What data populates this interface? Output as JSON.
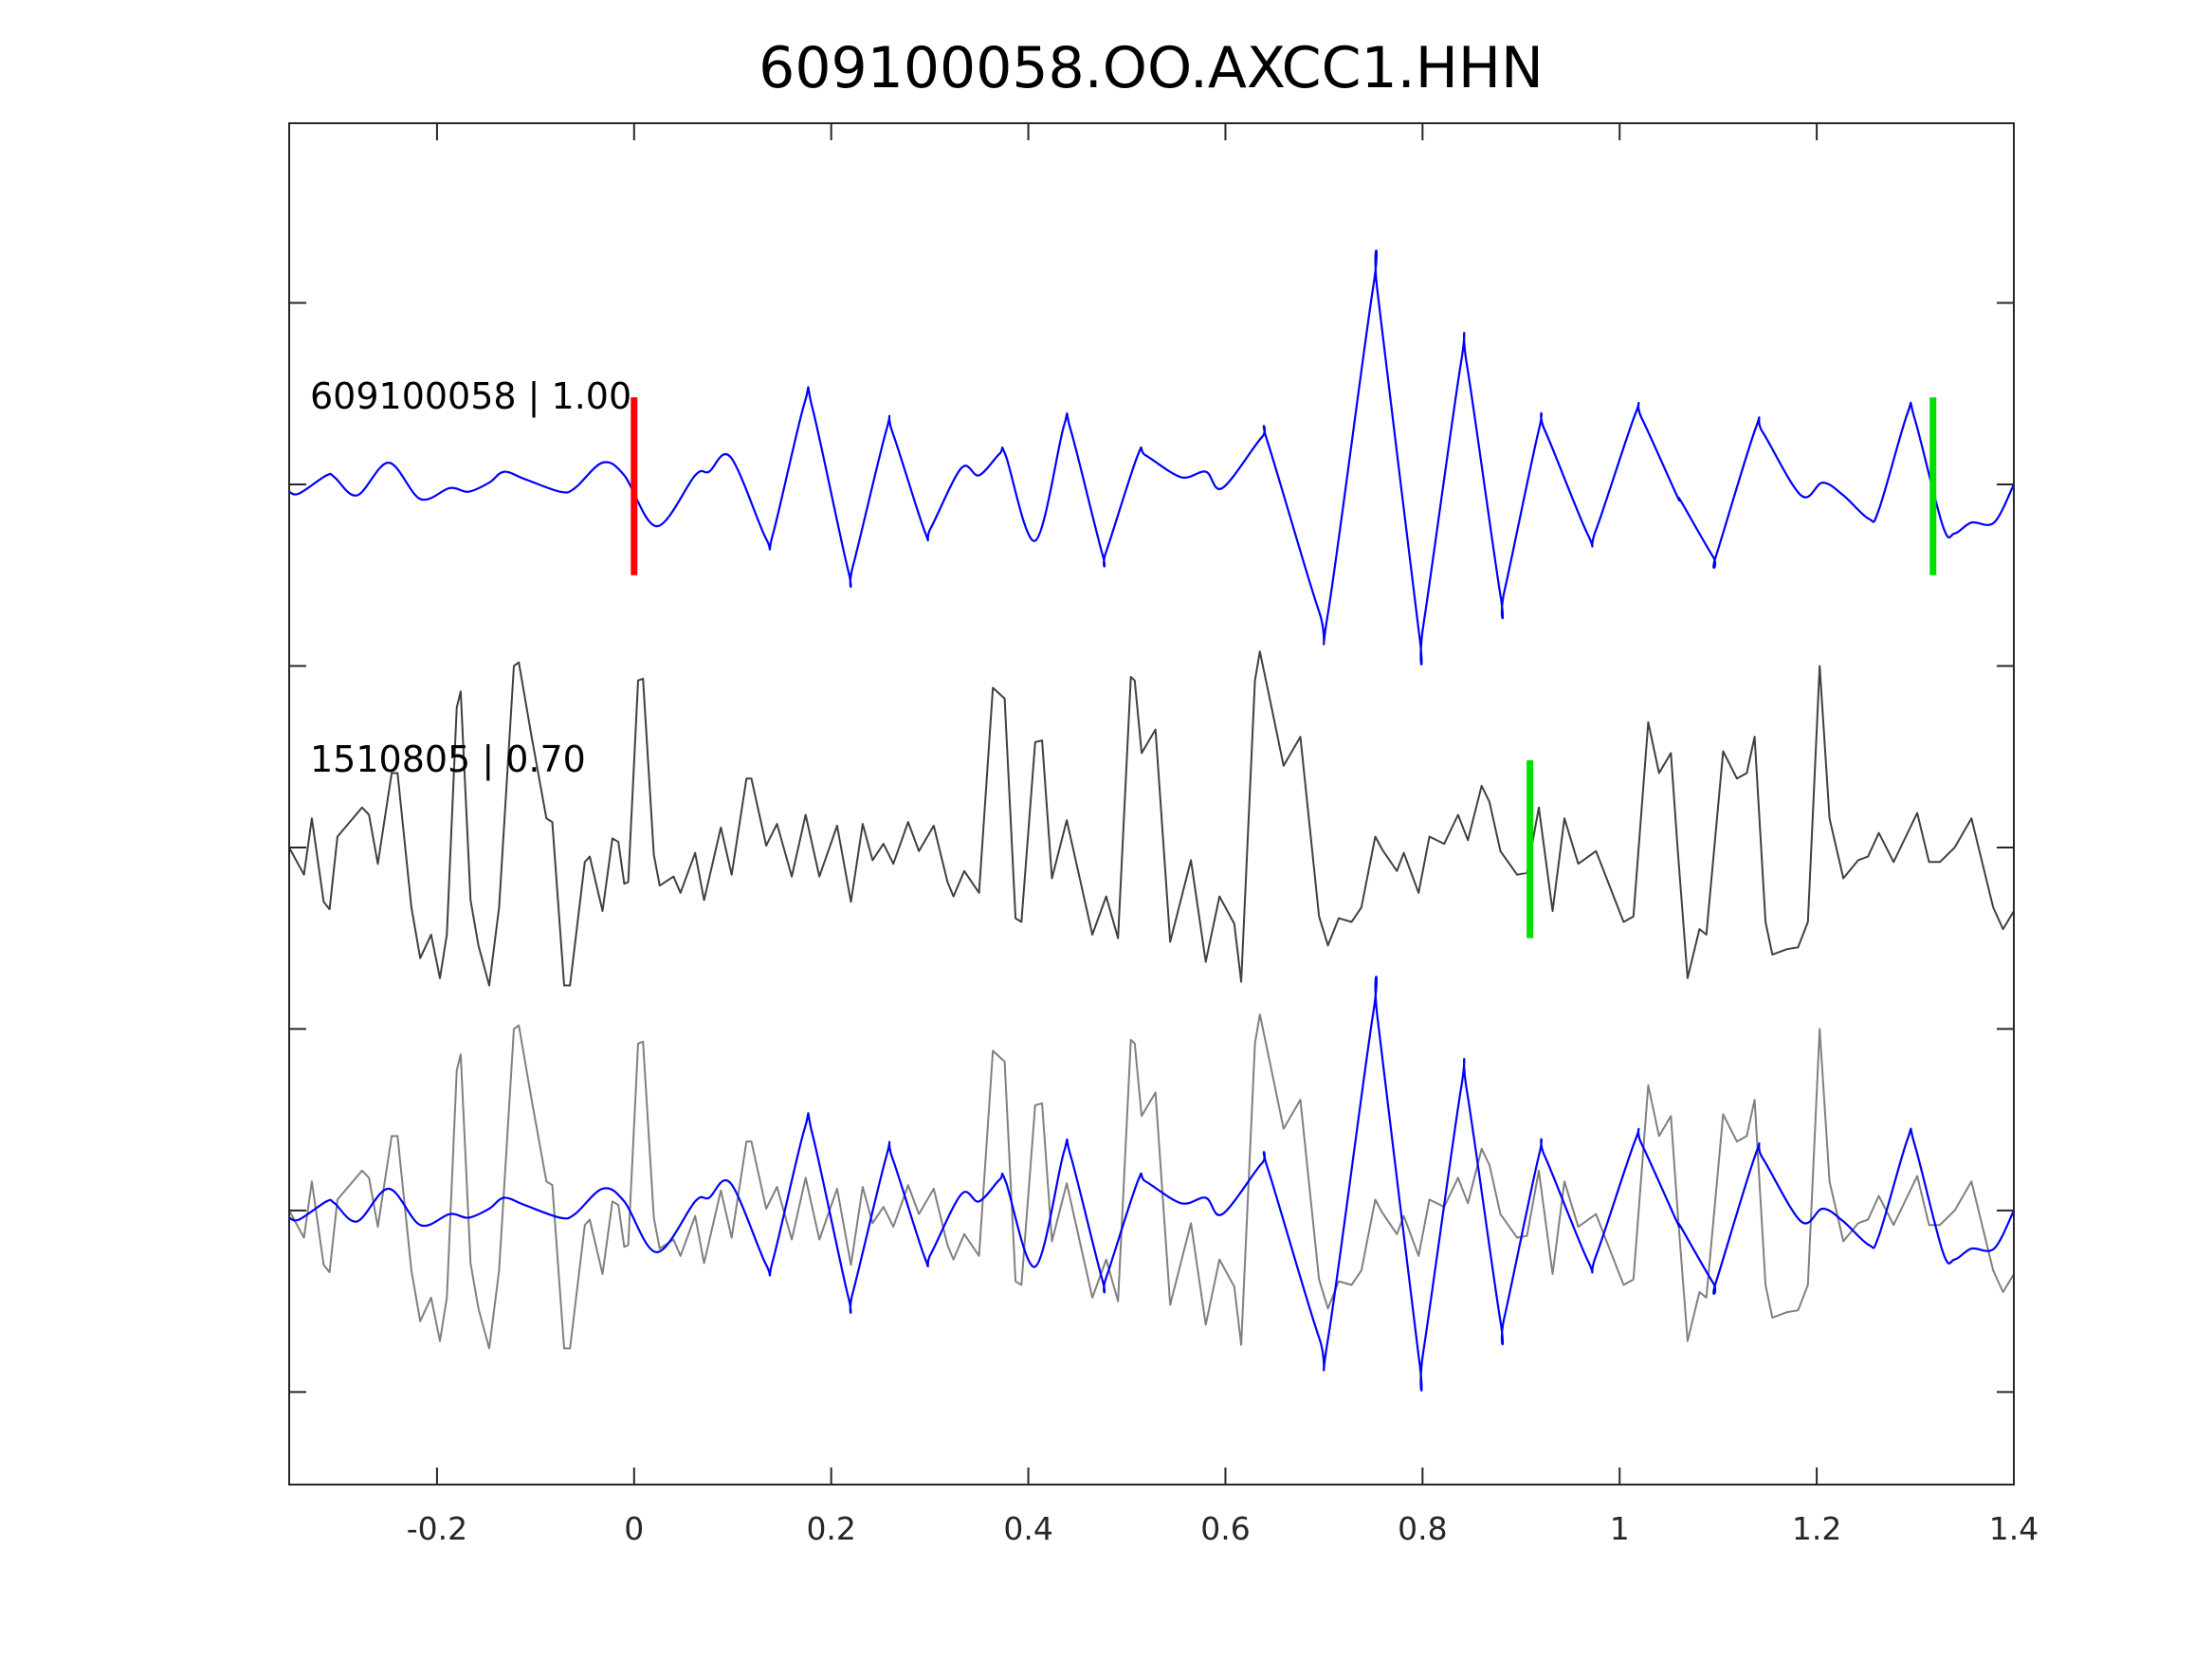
{
  "chart_data": {
    "type": "line",
    "title": "609100058.OO.AXCC1.HHN",
    "xlabel": "",
    "ylabel": "",
    "xlim": [
      -0.35,
      1.4
    ],
    "ylim": [
      -3.51,
      3.99
    ],
    "xticks": [
      -0.2,
      0,
      0.2,
      0.4,
      0.6,
      0.8,
      1,
      1.2,
      1.4
    ],
    "xtick_labels": [
      "-0.2",
      "0",
      "0.2",
      "0.4",
      "0.6",
      "0.8",
      "1",
      "1.2",
      "1.4"
    ],
    "yticks": [
      -3,
      -2,
      -1,
      0,
      1,
      2,
      3
    ],
    "grid": false,
    "colors": {
      "template": "#0000ff",
      "candidate": "#404040",
      "overlay_candidate": "#808080",
      "pick_red": "#ff0000",
      "pick_green": "#00e000",
      "axes": "#262626"
    },
    "trace_labels": [
      {
        "text": "609100058 | 1.00",
        "offset": 2
      },
      {
        "text": "1510805 | 0.70",
        "offset": 0
      }
    ],
    "picks": [
      {
        "trace_offset": 2,
        "x": 0.0,
        "color": "red"
      },
      {
        "trace_offset": 2,
        "x": 1.318,
        "color": "green"
      },
      {
        "trace_offset": 0,
        "x": 0.909,
        "color": "green"
      }
    ],
    "series": [
      {
        "name": "template",
        "offsets": [
          2,
          -2
        ],
        "smooth": true,
        "points": [
          [
            -0.35,
            -0.04
          ],
          [
            -0.34,
            -0.05
          ],
          [
            -0.312,
            0.05
          ],
          [
            -0.304,
            0.04
          ],
          [
            -0.281,
            -0.06
          ],
          [
            -0.249,
            0.12
          ],
          [
            -0.217,
            -0.08
          ],
          [
            -0.187,
            -0.02
          ],
          [
            -0.168,
            -0.04
          ],
          [
            -0.147,
            0.01
          ],
          [
            -0.132,
            0.07
          ],
          [
            -0.111,
            0.03
          ],
          [
            -0.075,
            -0.04
          ],
          [
            -0.06,
            -0.02
          ],
          [
            -0.032,
            0.12
          ],
          [
            -0.01,
            0.05
          ],
          [
            0.023,
            -0.23
          ],
          [
            0.062,
            0.05
          ],
          [
            0.076,
            0.07
          ],
          [
            0.098,
            0.15
          ],
          [
            0.134,
            -0.3
          ],
          [
            0.141,
            -0.27
          ],
          [
            0.173,
            0.45
          ],
          [
            0.181,
            0.42
          ],
          [
            0.217,
            -0.47
          ],
          [
            0.222,
            -0.45
          ],
          [
            0.256,
            0.3
          ],
          [
            0.262,
            0.29
          ],
          [
            0.295,
            -0.26
          ],
          [
            0.301,
            -0.24
          ],
          [
            0.332,
            0.09
          ],
          [
            0.35,
            0.05
          ],
          [
            0.371,
            0.17
          ],
          [
            0.377,
            0.16
          ],
          [
            0.407,
            -0.31
          ],
          [
            0.436,
            0.32
          ],
          [
            0.443,
            0.3
          ],
          [
            0.475,
            -0.38
          ],
          [
            0.479,
            -0.37
          ],
          [
            0.511,
            0.16
          ],
          [
            0.519,
            0.16
          ],
          [
            0.555,
            0.04
          ],
          [
            0.58,
            0.07
          ],
          [
            0.597,
            -0.02
          ],
          [
            0.637,
            0.26
          ],
          [
            0.643,
            0.23
          ],
          [
            0.695,
            -0.7
          ],
          [
            0.704,
            -0.71
          ],
          [
            0.75,
            1.09
          ],
          [
            0.755,
            1.03
          ],
          [
            0.796,
            -0.8
          ],
          [
            0.801,
            -0.77
          ],
          [
            0.839,
            0.67
          ],
          [
            0.845,
            0.66
          ],
          [
            0.879,
            -0.61
          ],
          [
            0.883,
            -0.59
          ],
          [
            0.918,
            0.3
          ],
          [
            0.924,
            0.3
          ],
          [
            0.968,
            -0.28
          ],
          [
            0.976,
            -0.25
          ],
          [
            1.016,
            0.39
          ],
          [
            1.022,
            0.37
          ],
          [
            1.058,
            -0.06
          ],
          [
            1.062,
            -0.09
          ],
          [
            1.095,
            -0.4
          ],
          [
            1.098,
            -0.39
          ],
          [
            1.138,
            0.31
          ],
          [
            1.145,
            0.29
          ],
          [
            1.184,
            -0.06
          ],
          [
            1.206,
            0.01
          ],
          [
            1.227,
            -0.06
          ],
          [
            1.253,
            -0.19
          ],
          [
            1.263,
            -0.14
          ],
          [
            1.292,
            0.39
          ],
          [
            1.299,
            0.37
          ],
          [
            1.328,
            -0.23
          ],
          [
            1.34,
            -0.27
          ],
          [
            1.357,
            -0.21
          ],
          [
            1.38,
            -0.21
          ],
          [
            1.4,
            0.0
          ]
        ]
      },
      {
        "name": "candidate",
        "offsets": [
          0,
          -2
        ],
        "smooth": false,
        "points": [
          [
            -0.35,
            0
          ],
          [
            -0.335,
            -0.15
          ],
          [
            -0.327,
            0.16
          ],
          [
            -0.315,
            -0.3
          ],
          [
            -0.309,
            -0.34
          ],
          [
            -0.301,
            0.06
          ],
          [
            -0.276,
            0.22
          ],
          [
            -0.269,
            0.18
          ],
          [
            -0.26,
            -0.09
          ],
          [
            -0.246,
            0.41
          ],
          [
            -0.24,
            0.41
          ],
          [
            -0.226,
            -0.33
          ],
          [
            -0.217,
            -0.61
          ],
          [
            -0.206,
            -0.48
          ],
          [
            -0.197,
            -0.72
          ],
          [
            -0.19,
            -0.48
          ],
          [
            -0.18,
            0.77
          ],
          [
            -0.176,
            0.86
          ],
          [
            -0.166,
            -0.29
          ],
          [
            -0.158,
            -0.54
          ],
          [
            -0.147,
            -0.76
          ],
          [
            -0.137,
            -0.33
          ],
          [
            -0.122,
            1.0
          ],
          [
            -0.117,
            1.02
          ],
          [
            -0.104,
            0.61
          ],
          [
            -0.089,
            0.16
          ],
          [
            -0.083,
            0.14
          ],
          [
            -0.071,
            -0.76
          ],
          [
            -0.065,
            -0.76
          ],
          [
            -0.05,
            -0.08
          ],
          [
            -0.045,
            -0.05
          ],
          [
            -0.032,
            -0.35
          ],
          [
            -0.022,
            0.05
          ],
          [
            -0.016,
            0.03
          ],
          [
            -0.01,
            -0.2
          ],
          [
            -0.006,
            -0.19
          ],
          [
            0.004,
            0.92
          ],
          [
            0.009,
            0.93
          ],
          [
            0.02,
            -0.04
          ],
          [
            0.026,
            -0.21
          ],
          [
            0.04,
            -0.16
          ],
          [
            0.047,
            -0.25
          ],
          [
            0.062,
            -0.03
          ],
          [
            0.071,
            -0.29
          ],
          [
            0.088,
            0.11
          ],
          [
            0.099,
            -0.15
          ],
          [
            0.114,
            0.38
          ],
          [
            0.119,
            0.38
          ],
          [
            0.134,
            0.01
          ],
          [
            0.145,
            0.13
          ],
          [
            0.16,
            -0.16
          ],
          [
            0.174,
            0.18
          ],
          [
            0.188,
            -0.16
          ],
          [
            0.206,
            0.12
          ],
          [
            0.22,
            -0.3
          ],
          [
            0.232,
            0.13
          ],
          [
            0.242,
            -0.07
          ],
          [
            0.253,
            0.02
          ],
          [
            0.263,
            -0.09
          ],
          [
            0.278,
            0.14
          ],
          [
            0.289,
            -0.02
          ],
          [
            0.304,
            0.12
          ],
          [
            0.318,
            -0.19
          ],
          [
            0.324,
            -0.27
          ],
          [
            0.335,
            -0.13
          ],
          [
            0.35,
            -0.25
          ],
          [
            0.364,
            0.88
          ],
          [
            0.376,
            0.82
          ],
          [
            0.387,
            -0.39
          ],
          [
            0.393,
            -0.41
          ],
          [
            0.407,
            0.58
          ],
          [
            0.414,
            0.59
          ],
          [
            0.424,
            -0.17
          ],
          [
            0.439,
            0.15
          ],
          [
            0.465,
            -0.48
          ],
          [
            0.479,
            -0.27
          ],
          [
            0.491,
            -0.5
          ],
          [
            0.504,
            0.94
          ],
          [
            0.508,
            0.92
          ],
          [
            0.515,
            0.52
          ],
          [
            0.529,
            0.65
          ],
          [
            0.544,
            -0.52
          ],
          [
            0.565,
            -0.07
          ],
          [
            0.58,
            -0.63
          ],
          [
            0.594,
            -0.27
          ],
          [
            0.609,
            -0.42
          ],
          [
            0.616,
            -0.74
          ],
          [
            0.63,
            0.92
          ],
          [
            0.635,
            1.08
          ],
          [
            0.645,
            0.82
          ],
          [
            0.659,
            0.45
          ],
          [
            0.676,
            0.61
          ],
          [
            0.695,
            -0.38
          ],
          [
            0.704,
            -0.54
          ],
          [
            0.715,
            -0.39
          ],
          [
            0.728,
            -0.41
          ],
          [
            0.738,
            -0.33
          ],
          [
            0.752,
            0.06
          ],
          [
            0.759,
            -0.01
          ],
          [
            0.774,
            -0.13
          ],
          [
            0.781,
            -0.03
          ],
          [
            0.796,
            -0.25
          ],
          [
            0.807,
            0.06
          ],
          [
            0.822,
            0.02
          ],
          [
            0.836,
            0.18
          ],
          [
            0.846,
            0.04
          ],
          [
            0.86,
            0.34
          ],
          [
            0.868,
            0.25
          ],
          [
            0.879,
            -0.02
          ],
          [
            0.896,
            -0.15
          ],
          [
            0.906,
            -0.14
          ],
          [
            0.918,
            0.22
          ],
          [
            0.932,
            -0.35
          ],
          [
            0.944,
            0.16
          ],
          [
            0.958,
            -0.09
          ],
          [
            0.976,
            -0.02
          ],
          [
            1.004,
            -0.41
          ],
          [
            1.014,
            -0.38
          ],
          [
            1.029,
            0.69
          ],
          [
            1.04,
            0.41
          ],
          [
            1.052,
            0.52
          ],
          [
            1.059,
            -0.02
          ],
          [
            1.069,
            -0.72
          ],
          [
            1.081,
            -0.45
          ],
          [
            1.088,
            -0.48
          ],
          [
            1.105,
            0.53
          ],
          [
            1.119,
            0.38
          ],
          [
            1.129,
            0.41
          ],
          [
            1.137,
            0.61
          ],
          [
            1.148,
            -0.41
          ],
          [
            1.155,
            -0.59
          ],
          [
            1.17,
            -0.56
          ],
          [
            1.181,
            -0.55
          ],
          [
            1.191,
            -0.41
          ],
          [
            1.203,
            1.0
          ],
          [
            1.213,
            0.16
          ],
          [
            1.227,
            -0.17
          ],
          [
            1.242,
            -0.07
          ],
          [
            1.252,
            -0.05
          ],
          [
            1.263,
            0.08
          ],
          [
            1.278,
            -0.08
          ],
          [
            1.302,
            0.19
          ],
          [
            1.314,
            -0.08
          ],
          [
            1.325,
            -0.08
          ],
          [
            1.34,
            0.0
          ],
          [
            1.357,
            0.16
          ],
          [
            1.379,
            -0.33
          ],
          [
            1.389,
            -0.45
          ],
          [
            1.4,
            -0.35
          ]
        ]
      }
    ]
  }
}
